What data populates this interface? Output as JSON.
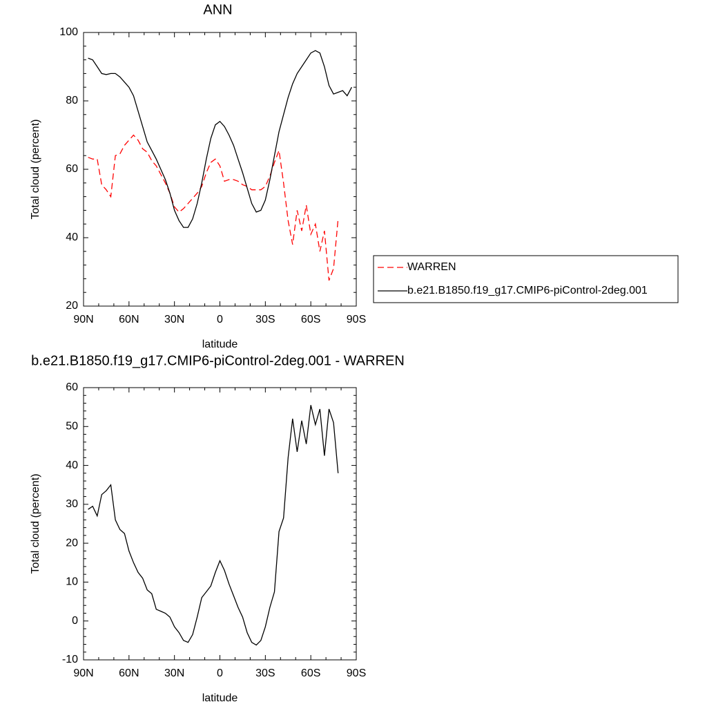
{
  "chart_data": [
    {
      "type": "line",
      "title": "ANN",
      "xlabel": "latitude",
      "ylabel": "Total cloud (percent)",
      "x": [
        87,
        84,
        81,
        78,
        75,
        72,
        69,
        66,
        63,
        60,
        57,
        54,
        51,
        48,
        45,
        42,
        39,
        36,
        33,
        30,
        27,
        24,
        21,
        18,
        15,
        12,
        9,
        6,
        3,
        0,
        -3,
        -6,
        -9,
        -12,
        -15,
        -18,
        -21,
        -24,
        -27,
        -30,
        -33,
        -36,
        -39,
        -42,
        -45,
        -48,
        -51,
        -54,
        -57,
        -60,
        -63,
        -66,
        -69,
        -72,
        -75,
        -78,
        -81,
        -84,
        -87
      ],
      "xlim": [
        90,
        -90
      ],
      "xticks": [
        {
          "value": 90,
          "label": "90N"
        },
        {
          "value": 60,
          "label": "60N"
        },
        {
          "value": 30,
          "label": "30N"
        },
        0,
        {
          "value": -30,
          "label": "30S"
        },
        {
          "value": -60,
          "label": "60S"
        },
        {
          "value": -90,
          "label": "90S"
        }
      ],
      "ylim": [
        20,
        100
      ],
      "yticks": [
        20,
        40,
        60,
        80,
        100
      ],
      "legend": "right",
      "series": [
        {
          "name": "WARREN",
          "color": "#ff0000",
          "dash": true,
          "values": [
            63.5,
            63,
            63,
            55.5,
            54,
            52,
            64,
            64.5,
            67,
            68.5,
            70,
            68.5,
            66,
            65,
            62.5,
            61,
            58.5,
            56,
            53,
            49,
            47.5,
            48.5,
            50,
            51.5,
            53,
            55,
            59,
            62,
            63,
            61,
            56.5,
            57,
            57,
            56.5,
            55.5,
            55,
            54,
            54,
            54,
            55,
            58,
            62,
            65.5,
            56,
            45,
            38,
            48,
            42,
            49.5,
            41,
            44,
            36,
            42,
            27.5,
            31,
            45.5,
            null,
            null,
            null
          ]
        },
        {
          "name": "b.e21.B1850.f19_g17.CMIP6-piControl-2deg.001",
          "color": "#000000",
          "dash": false,
          "values": [
            92.5,
            92,
            90,
            88,
            87.7,
            88,
            88,
            87,
            85.5,
            84,
            81.5,
            77,
            72.5,
            68,
            65.5,
            63,
            60,
            57,
            53,
            48,
            45,
            43,
            43,
            45.5,
            50,
            56,
            63,
            69,
            73,
            74,
            72.5,
            70,
            67,
            63,
            59,
            54.5,
            50,
            47.5,
            48,
            51,
            57,
            64,
            71,
            76,
            81,
            85,
            88,
            90,
            92,
            94,
            94.7,
            94,
            90,
            84.5,
            82,
            82.5,
            83,
            81.5,
            84
          ]
        }
      ]
    },
    {
      "type": "line",
      "title": "b.e21.B1850.f19_g17.CMIP6-piControl-2deg.001 - WARREN",
      "xlabel": "latitude",
      "ylabel": "Total cloud (percent)",
      "x": [
        87,
        84,
        81,
        78,
        75,
        72,
        69,
        66,
        63,
        60,
        57,
        54,
        51,
        48,
        45,
        42,
        39,
        36,
        33,
        30,
        27,
        24,
        21,
        18,
        15,
        12,
        9,
        6,
        3,
        0,
        -3,
        -6,
        -9,
        -12,
        -15,
        -18,
        -21,
        -24,
        -27,
        -30,
        -33,
        -36,
        -39,
        -42,
        -45,
        -48,
        -51,
        -54,
        -57,
        -60,
        -63,
        -66,
        -69,
        -72,
        -75,
        -78,
        -81,
        -84,
        -87
      ],
      "xlim": [
        90,
        -90
      ],
      "xticks": [
        {
          "value": 90,
          "label": "90N"
        },
        {
          "value": 60,
          "label": "60N"
        },
        {
          "value": 30,
          "label": "30N"
        },
        0,
        {
          "value": -30,
          "label": "30S"
        },
        {
          "value": -60,
          "label": "60S"
        },
        {
          "value": -90,
          "label": "90S"
        }
      ],
      "ylim": [
        -10,
        60
      ],
      "yticks": [
        -10,
        0,
        10,
        20,
        30,
        40,
        50,
        60
      ],
      "series": [
        {
          "color": "#000000",
          "dash": false,
          "values": [
            28.7,
            29.5,
            27,
            32.5,
            33.5,
            35,
            26,
            23.5,
            22.5,
            18,
            15,
            12.5,
            11,
            8,
            7,
            3,
            2.5,
            2,
            1,
            -1.5,
            -3,
            -5,
            -5.5,
            -3.5,
            1,
            6,
            7.5,
            9,
            12.5,
            15.5,
            13,
            9.5,
            6.5,
            3.5,
            1,
            -3,
            -5.5,
            -6.2,
            -5,
            -1.5,
            3.5,
            7.5,
            23,
            26.5,
            42,
            52,
            43.5,
            51.5,
            45.5,
            55.5,
            50.5,
            54.5,
            42.5,
            54.5,
            51,
            38,
            null,
            null,
            null
          ]
        }
      ]
    }
  ]
}
